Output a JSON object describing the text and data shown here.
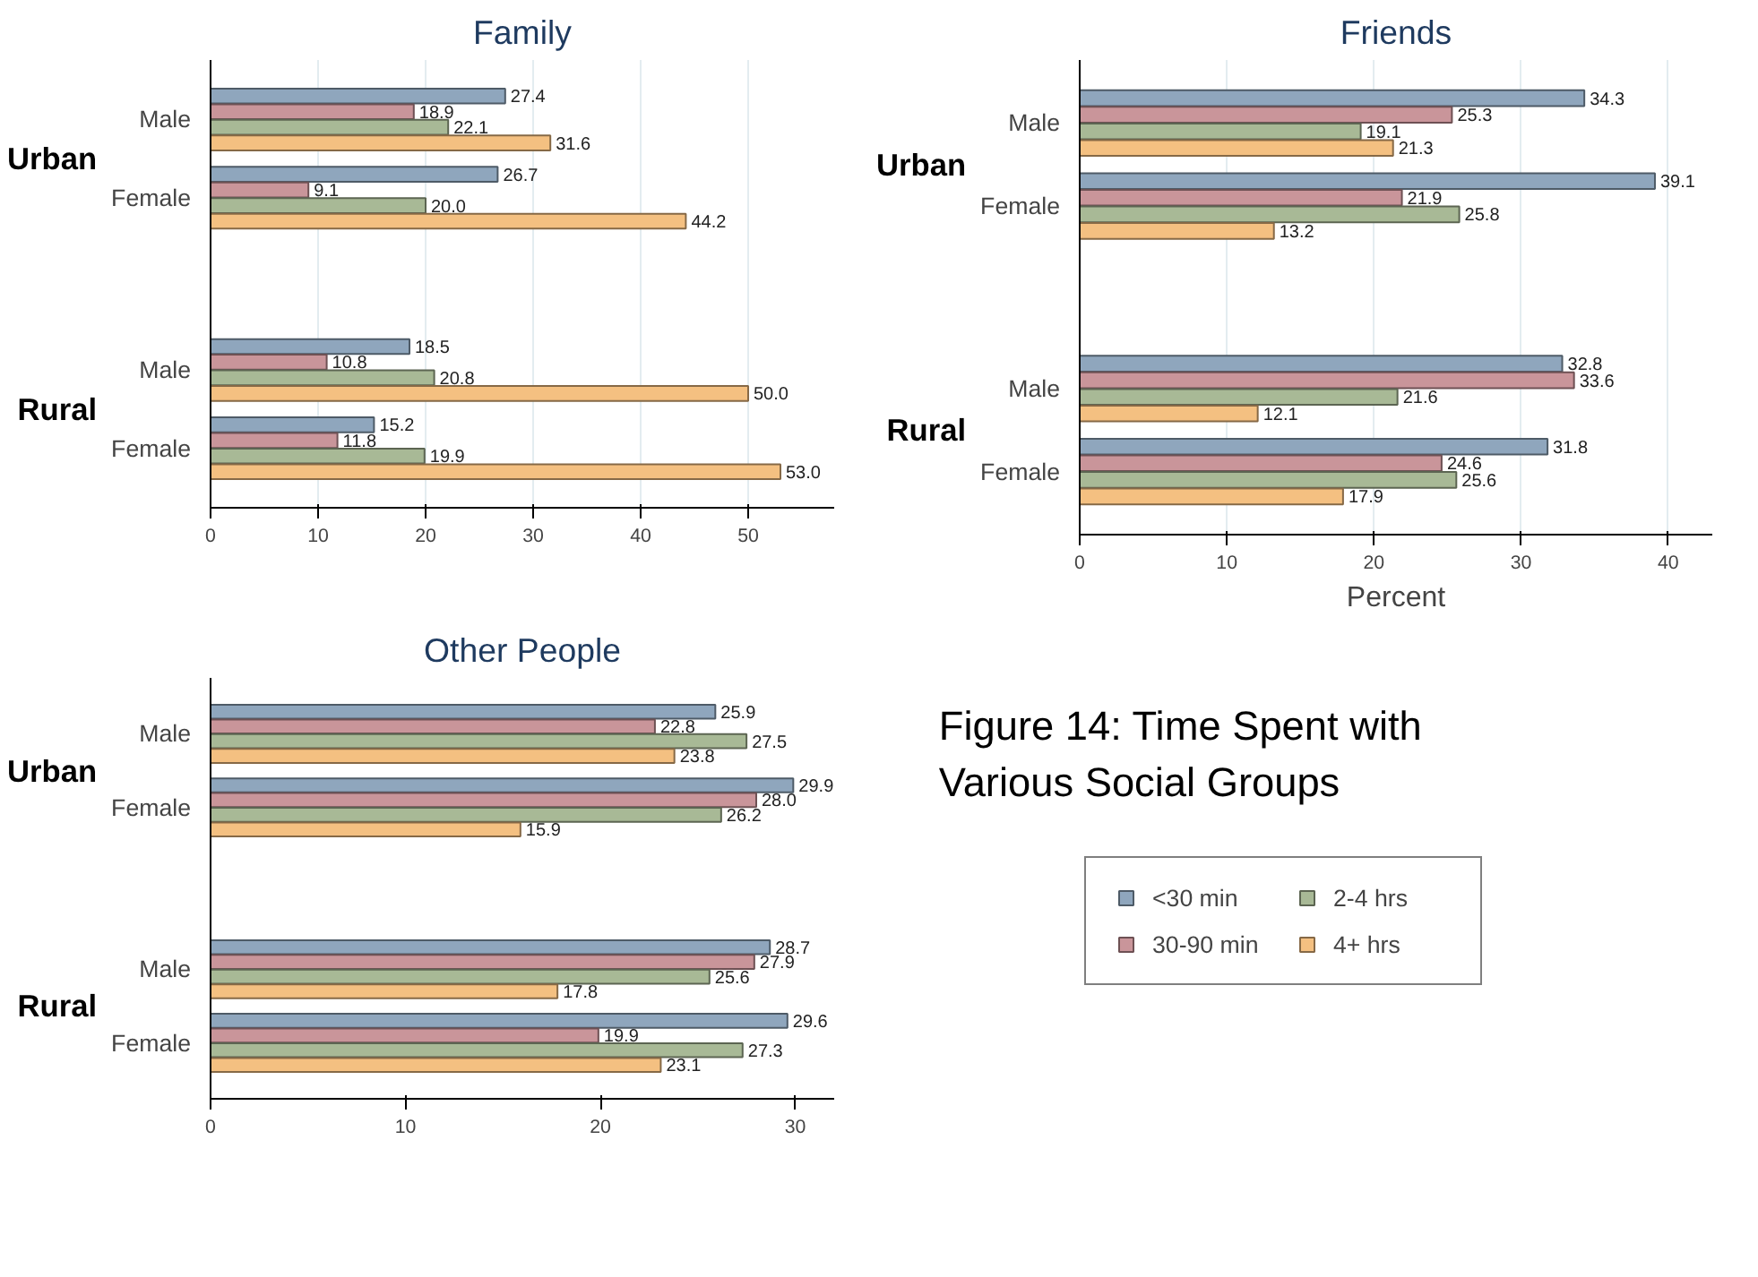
{
  "chart_data": [
    {
      "type": "bar",
      "orientation": "horizontal",
      "title": "Family",
      "categories": [
        "Male",
        "Female",
        "Male",
        "Female"
      ],
      "annotations": [
        "Urban",
        "Rural"
      ],
      "xlim": [
        0,
        58
      ],
      "xticks": [
        0,
        10,
        20,
        30,
        40,
        50
      ],
      "grid": "x",
      "legend": false,
      "series": [
        {
          "color": "#8fa6bd",
          "values": [
            27.4,
            26.7,
            18.5,
            15.2
          ],
          "value_labels": [
            "27.4",
            "26.7",
            "18.5",
            "15.2"
          ]
        },
        {
          "color": "#c9959a",
          "values": [
            18.9,
            9.1,
            10.8,
            11.8
          ],
          "value_labels": [
            "18.9",
            "9.1",
            "10.8",
            "11.8"
          ]
        },
        {
          "color": "#a8b996",
          "values": [
            22.1,
            20.0,
            20.8,
            19.9
          ],
          "value_labels": [
            "22.1",
            "20.0",
            "20.8",
            "19.9"
          ]
        },
        {
          "color": "#f4c081",
          "values": [
            31.6,
            44.2,
            50.0,
            53.0
          ],
          "value_labels": [
            "31.6",
            "44.2",
            "50.0",
            "53.0"
          ]
        }
      ]
    },
    {
      "type": "bar",
      "orientation": "horizontal",
      "title": "Friends",
      "xlabel": "Percent",
      "categories": [
        "Male",
        "Female",
        "Male",
        "Female"
      ],
      "annotations": [
        "Urban",
        "Rural"
      ],
      "xlim": [
        0,
        43
      ],
      "xticks": [
        0,
        10,
        20,
        30,
        40
      ],
      "grid": "x",
      "legend": false,
      "series": [
        {
          "color": "#8fa6bd",
          "values": [
            34.3,
            39.1,
            32.8,
            31.8
          ],
          "value_labels": [
            "34.3",
            "39.1",
            "32.8",
            "31.8"
          ]
        },
        {
          "color": "#c9959a",
          "values": [
            25.3,
            21.9,
            33.6,
            24.6
          ],
          "value_labels": [
            "25.3",
            "21.9",
            "33.6",
            "24.6"
          ]
        },
        {
          "color": "#a8b996",
          "values": [
            19.1,
            25.8,
            21.6,
            25.6
          ],
          "value_labels": [
            "19.1",
            "25.8",
            "21.6",
            "25.6"
          ]
        },
        {
          "color": "#f4c081",
          "values": [
            21.3,
            13.2,
            12.1,
            17.9
          ],
          "value_labels": [
            "21.3",
            "13.2",
            "12.1",
            "17.9"
          ]
        }
      ]
    },
    {
      "type": "bar",
      "orientation": "horizontal",
      "title": "Other People",
      "categories": [
        "Male",
        "Female",
        "Male",
        "Female"
      ],
      "annotations": [
        "Urban",
        "Rural",
        "Figure 14: Time Spent with\n          Various Social Groups"
      ],
      "xlim": [
        0,
        32
      ],
      "xticks": [
        0,
        10,
        20,
        30
      ],
      "grid": false,
      "legend": "right",
      "series": [
        {
          "name": "<30 min",
          "color": "#8fa6bd",
          "values": [
            25.9,
            29.9,
            28.7,
            29.6
          ],
          "value_labels": [
            "25.9",
            "29.9",
            "28.7",
            "29.6"
          ]
        },
        {
          "name": "30-90 min",
          "color": "#c9959a",
          "values": [
            22.8,
            28.0,
            27.9,
            19.9
          ],
          "value_labels": [
            "22.8",
            "28.0",
            "27.9",
            "19.9"
          ]
        },
        {
          "name": "2-4 hrs",
          "color": "#a8b996",
          "values": [
            27.5,
            26.2,
            25.6,
            27.3
          ],
          "value_labels": [
            "27.5",
            "26.2",
            "25.6",
            "27.3"
          ]
        },
        {
          "name": "4+ hrs",
          "color": "#f4c081",
          "values": [
            23.8,
            15.9,
            17.8,
            23.1
          ],
          "value_labels": [
            "23.8",
            "15.9",
            "17.8",
            "23.1"
          ]
        }
      ]
    }
  ]
}
